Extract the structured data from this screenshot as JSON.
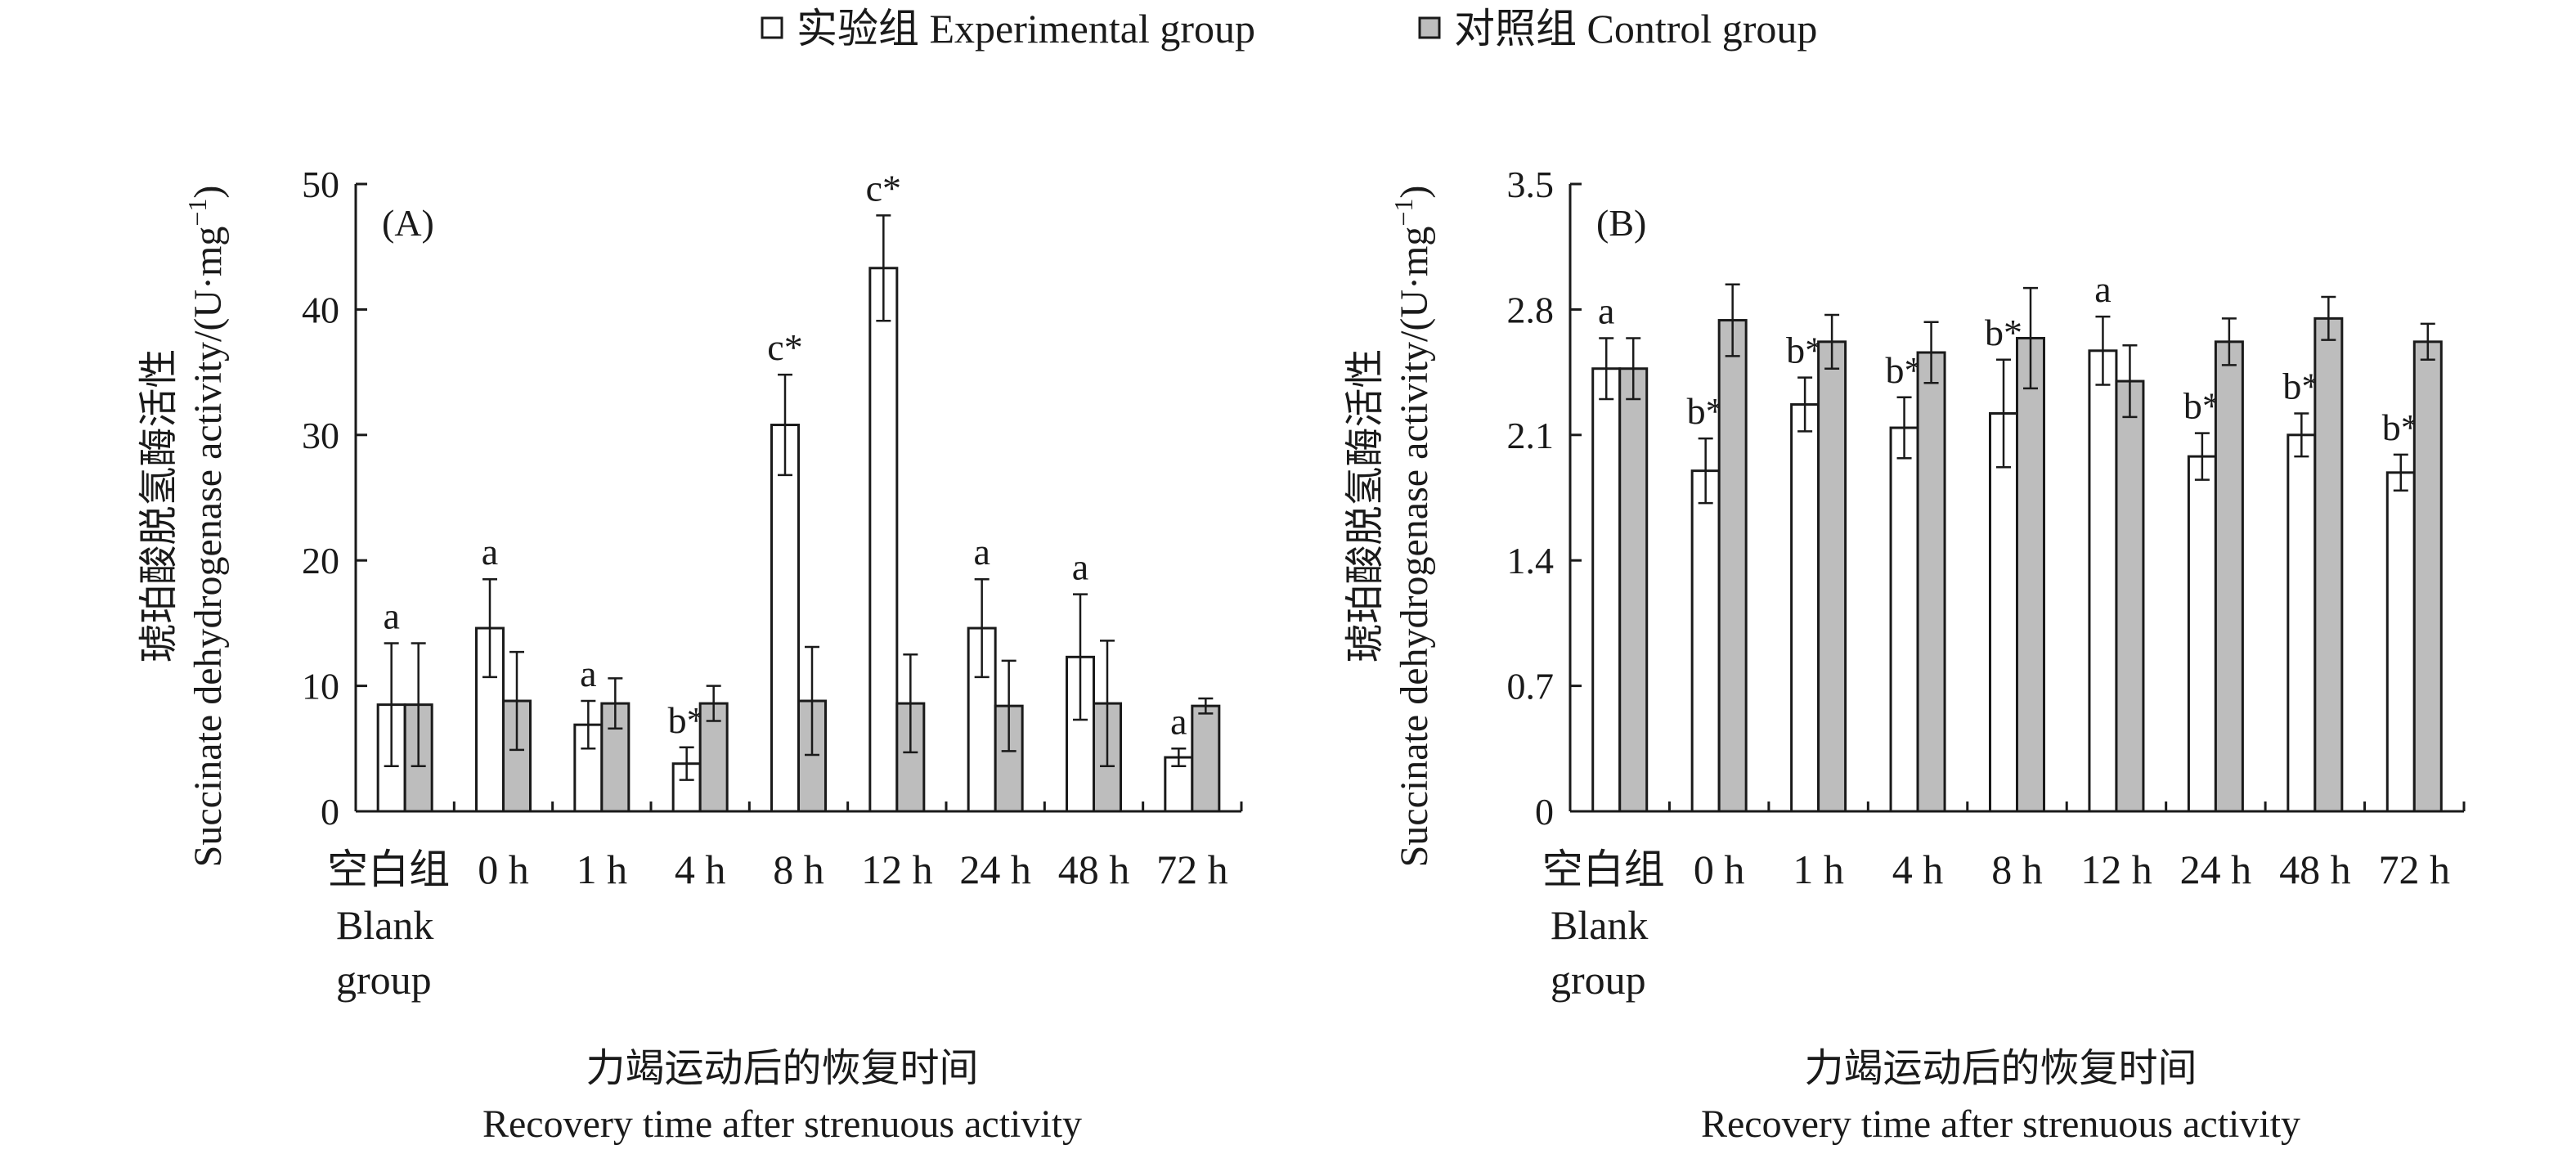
{
  "legend": {
    "experimental": "实验组 Experimental group",
    "control": "对照组 Control group"
  },
  "colors": {
    "experimental": "#ffffff",
    "control": "#bdbdbd",
    "stroke": "#1a1a1a"
  },
  "chart_data": [
    {
      "type": "bar",
      "panel_label": "(A)",
      "categories": [
        "空白组",
        "0 h",
        "1 h",
        "4 h",
        "8 h",
        "12 h",
        "24 h",
        "48 h",
        "72 h"
      ],
      "category_sublabel": [
        "Blank",
        "group"
      ],
      "ylabel_cn": "琥珀酸脱氢酶活性",
      "ylabel_en": "Succinate dehydrogenase activity/(U·mg",
      "ylabel_sup": "−1",
      "ylabel_end": ")",
      "xlabel_cn": "力竭运动后的恢复时间",
      "xlabel_en": "Recovery time after strenuous activity",
      "ylim": [
        0,
        50
      ],
      "yticks": [
        0,
        10,
        20,
        30,
        40,
        50
      ],
      "ytick_labels": [
        "0",
        "10",
        "20",
        "30",
        "40",
        "50"
      ],
      "series": [
        {
          "name": "实验组 Experimental group",
          "values": [
            8.5,
            14.6,
            6.9,
            3.8,
            30.8,
            43.3,
            14.6,
            12.3,
            4.3
          ],
          "errors": [
            4.9,
            3.9,
            1.9,
            1.3,
            4.0,
            4.2,
            3.9,
            5.0,
            0.7
          ],
          "labels": [
            "a",
            "a",
            "a",
            "b*",
            "c*",
            "c*",
            "a",
            "a",
            "a"
          ]
        },
        {
          "name": "对照组 Control group",
          "values": [
            8.5,
            8.8,
            8.6,
            8.6,
            8.8,
            8.6,
            8.4,
            8.6,
            8.4
          ],
          "errors": [
            4.9,
            3.9,
            2.0,
            1.4,
            4.3,
            3.9,
            3.6,
            5.0,
            0.6
          ]
        }
      ]
    },
    {
      "type": "bar",
      "panel_label": "(B)",
      "categories": [
        "空白组",
        "0 h",
        "1 h",
        "4 h",
        "8 h",
        "12 h",
        "24 h",
        "48 h",
        "72 h"
      ],
      "category_sublabel": [
        "Blank",
        "group"
      ],
      "ylabel_cn": "琥珀酸脱氢酶活性",
      "ylabel_en": "Succinate dehydrogenase activity/(U·mg",
      "ylabel_sup": "−1",
      "ylabel_end": ")",
      "xlabel_cn": "力竭运动后的恢复时间",
      "xlabel_en": "Recovery time after strenuous activity",
      "ylim": [
        0,
        3.5
      ],
      "yticks": [
        0,
        0.7,
        1.4,
        2.1,
        2.8,
        3.5
      ],
      "ytick_labels": [
        "0",
        "0.7",
        "1.4",
        "2.1",
        "2.8",
        "3.5"
      ],
      "series": [
        {
          "name": "实验组 Experimental group",
          "values": [
            2.47,
            1.9,
            2.27,
            2.14,
            2.22,
            2.57,
            1.98,
            2.1,
            1.89
          ],
          "errors": [
            0.17,
            0.18,
            0.15,
            0.17,
            0.3,
            0.19,
            0.13,
            0.12,
            0.1
          ],
          "labels": [
            "a",
            "b*",
            "b*",
            "b*",
            "b*",
            "a",
            "b*",
            "b*",
            "b*"
          ]
        },
        {
          "name": "对照组 Control group",
          "values": [
            2.47,
            2.74,
            2.62,
            2.56,
            2.64,
            2.4,
            2.62,
            2.75,
            2.62
          ],
          "errors": [
            0.17,
            0.2,
            0.15,
            0.17,
            0.28,
            0.2,
            0.13,
            0.12,
            0.1
          ]
        }
      ]
    }
  ]
}
